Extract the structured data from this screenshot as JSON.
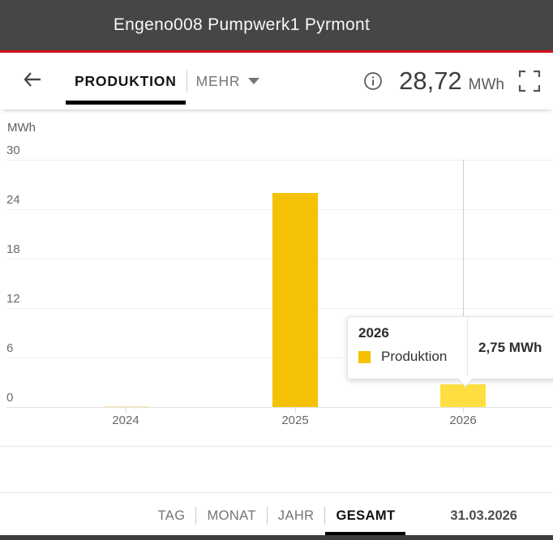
{
  "header": {
    "title": "Engeno008 Pumpwerk1 Pyrmont"
  },
  "toolbar": {
    "production_tab": "PRODUKTION",
    "more_tab": "MEHR",
    "total_value": "28,72",
    "total_unit": "MWh"
  },
  "chart_data": {
    "type": "bar",
    "title": "",
    "unit_label": "MWh",
    "xlabel": "",
    "ylabel": "MWh",
    "categories": [
      "2024",
      "2025",
      "2026"
    ],
    "series": [
      {
        "name": "Produktion",
        "values": [
          0.04,
          25.93,
          2.75
        ]
      }
    ],
    "ylim": [
      0,
      30
    ],
    "yticks": [
      0,
      6,
      12,
      18,
      24,
      30
    ],
    "grid": true,
    "legend_position": "tooltip-only",
    "bar_color": "#f5c107",
    "bar_color_hover": "#ffdf3f",
    "hover_index": 2,
    "tooltip": {
      "title": "2026",
      "series_label": "Produktion",
      "value": "2,75 MWh",
      "marker_color": "#f5c100"
    }
  },
  "footer": {
    "range_tabs": [
      {
        "label": "TAG",
        "active": false
      },
      {
        "label": "MONAT",
        "active": false
      },
      {
        "label": "JAHR",
        "active": false
      },
      {
        "label": "GESAMT",
        "active": true
      }
    ],
    "date": "31.03.2026"
  },
  "colors": {
    "header_bg": "#464646",
    "accent_red": "#d0101c",
    "bar": "#f5c107",
    "bar_hover": "#ffdf3f"
  }
}
